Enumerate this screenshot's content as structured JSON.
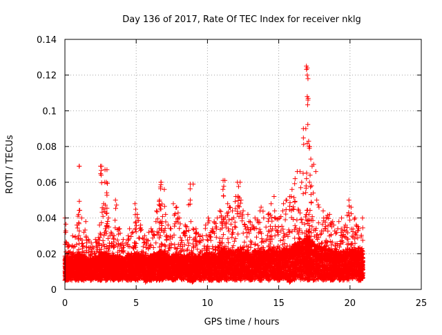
{
  "chart_data": {
    "type": "scatter",
    "title": "Day 136 of 2017, Rate Of TEC Index for receiver nklg",
    "xlabel": "GPS time / hours",
    "ylabel": "ROTI / TECUs",
    "xlim": [
      0,
      25
    ],
    "ylim": [
      0,
      0.14
    ],
    "xticks": [
      0,
      5,
      10,
      15,
      20,
      25
    ],
    "xtick_labels": [
      "0",
      "5",
      "10",
      "15",
      "20",
      "25"
    ],
    "yticks": [
      0,
      0.02,
      0.04,
      0.06,
      0.08,
      0.1,
      0.12,
      0.14
    ],
    "ytick_labels": [
      "0",
      "0.02",
      "0.04",
      "0.06",
      "0.08",
      "0.1",
      "0.12",
      "0.14"
    ],
    "grid": true,
    "marker": "plus",
    "series_color": "#ff0000",
    "data_range_hours": [
      0,
      20.9
    ],
    "series": [
      {
        "name": "ROTI",
        "description_x": "GPS time (hours)",
        "x": [
          0.0,
          0.1,
          0.2,
          0.3,
          0.5,
          0.7,
          0.9,
          1.0,
          1.1,
          1.3,
          1.5,
          1.7,
          1.9,
          2.1,
          2.3,
          2.5,
          2.6,
          2.8,
          2.9,
          3.0,
          3.2,
          3.4,
          3.5,
          3.7,
          3.9,
          4.1,
          4.3,
          4.5,
          4.7,
          4.9,
          5.0,
          5.2,
          5.4,
          5.6,
          5.8,
          6.0,
          6.2,
          6.4,
          6.6,
          6.7,
          6.8,
          7.0,
          7.2,
          7.4,
          7.6,
          7.8,
          8.0,
          8.2,
          8.4,
          8.6,
          8.8,
          9.0,
          9.2,
          9.4,
          9.6,
          9.8,
          10.0,
          10.2,
          10.4,
          10.6,
          10.8,
          11.0,
          11.1,
          11.3,
          11.5,
          11.7,
          11.9,
          12.1,
          12.3,
          12.5,
          12.7,
          12.9,
          13.1,
          13.3,
          13.5,
          13.7,
          13.9,
          14.1,
          14.3,
          14.5,
          14.7,
          14.9,
          15.1,
          15.3,
          15.5,
          15.7,
          15.9,
          16.1,
          16.3,
          16.5,
          16.7,
          16.9,
          17.0,
          17.1,
          17.2,
          17.4,
          17.6,
          17.8,
          18.0,
          18.2,
          18.4,
          18.6,
          18.8,
          19.0,
          19.2,
          19.4,
          19.6,
          19.8,
          20.0,
          20.2,
          20.4,
          20.6,
          20.8
        ],
        "y_min": [
          0.005,
          0.005,
          0.005,
          0.005,
          0.006,
          0.005,
          0.005,
          0.006,
          0.005,
          0.005,
          0.006,
          0.005,
          0.005,
          0.006,
          0.005,
          0.005,
          0.006,
          0.005,
          0.005,
          0.006,
          0.005,
          0.005,
          0.006,
          0.005,
          0.005,
          0.006,
          0.005,
          0.005,
          0.006,
          0.005,
          0.005,
          0.006,
          0.005,
          0.004,
          0.005,
          0.005,
          0.006,
          0.005,
          0.005,
          0.006,
          0.005,
          0.005,
          0.006,
          0.005,
          0.005,
          0.006,
          0.005,
          0.005,
          0.006,
          0.005,
          0.004,
          0.005,
          0.006,
          0.005,
          0.005,
          0.006,
          0.005,
          0.005,
          0.006,
          0.005,
          0.005,
          0.006,
          0.005,
          0.005,
          0.006,
          0.005,
          0.005,
          0.006,
          0.005,
          0.005,
          0.006,
          0.005,
          0.005,
          0.006,
          0.005,
          0.005,
          0.006,
          0.005,
          0.005,
          0.006,
          0.005,
          0.005,
          0.006,
          0.005,
          0.005,
          0.004,
          0.005,
          0.005,
          0.006,
          0.005,
          0.005,
          0.006,
          0.005,
          0.005,
          0.006,
          0.005,
          0.005,
          0.006,
          0.005,
          0.005,
          0.006,
          0.005,
          0.005,
          0.006,
          0.005,
          0.005,
          0.006,
          0.005,
          0.005,
          0.006,
          0.005,
          0.005,
          0.006
        ],
        "y_max": [
          0.04,
          0.026,
          0.025,
          0.024,
          0.03,
          0.036,
          0.042,
          0.069,
          0.04,
          0.038,
          0.028,
          0.026,
          0.024,
          0.028,
          0.036,
          0.069,
          0.048,
          0.067,
          0.06,
          0.04,
          0.032,
          0.03,
          0.05,
          0.034,
          0.028,
          0.026,
          0.03,
          0.034,
          0.032,
          0.048,
          0.042,
          0.036,
          0.03,
          0.028,
          0.032,
          0.034,
          0.038,
          0.044,
          0.05,
          0.06,
          0.056,
          0.042,
          0.036,
          0.034,
          0.048,
          0.046,
          0.04,
          0.032,
          0.036,
          0.059,
          0.038,
          0.034,
          0.032,
          0.03,
          0.03,
          0.036,
          0.04,
          0.034,
          0.038,
          0.04,
          0.044,
          0.056,
          0.061,
          0.048,
          0.046,
          0.044,
          0.052,
          0.06,
          0.05,
          0.044,
          0.042,
          0.038,
          0.036,
          0.04,
          0.044,
          0.046,
          0.04,
          0.042,
          0.048,
          0.052,
          0.044,
          0.04,
          0.044,
          0.048,
          0.05,
          0.052,
          0.056,
          0.062,
          0.066,
          0.06,
          0.09,
          0.125,
          0.107,
          0.08,
          0.069,
          0.054,
          0.05,
          0.046,
          0.044,
          0.04,
          0.042,
          0.038,
          0.036,
          0.034,
          0.038,
          0.04,
          0.036,
          0.05,
          0.046,
          0.04,
          0.036,
          0.034,
          0.04
        ],
        "y_typical": [
          0.014,
          0.013,
          0.013,
          0.013,
          0.014,
          0.014,
          0.015,
          0.015,
          0.014,
          0.014,
          0.013,
          0.013,
          0.013,
          0.014,
          0.014,
          0.015,
          0.015,
          0.015,
          0.015,
          0.014,
          0.014,
          0.013,
          0.014,
          0.014,
          0.013,
          0.013,
          0.014,
          0.014,
          0.014,
          0.015,
          0.015,
          0.014,
          0.014,
          0.013,
          0.014,
          0.014,
          0.015,
          0.015,
          0.016,
          0.016,
          0.016,
          0.015,
          0.014,
          0.014,
          0.015,
          0.015,
          0.014,
          0.014,
          0.014,
          0.015,
          0.014,
          0.014,
          0.014,
          0.014,
          0.014,
          0.015,
          0.015,
          0.015,
          0.015,
          0.015,
          0.016,
          0.016,
          0.017,
          0.016,
          0.016,
          0.016,
          0.016,
          0.017,
          0.016,
          0.016,
          0.016,
          0.015,
          0.015,
          0.016,
          0.016,
          0.016,
          0.016,
          0.016,
          0.017,
          0.017,
          0.016,
          0.016,
          0.016,
          0.017,
          0.017,
          0.017,
          0.018,
          0.019,
          0.02,
          0.02,
          0.021,
          0.022,
          0.022,
          0.021,
          0.02,
          0.019,
          0.018,
          0.018,
          0.017,
          0.017,
          0.017,
          0.016,
          0.016,
          0.016,
          0.016,
          0.016,
          0.016,
          0.017,
          0.017,
          0.016,
          0.016,
          0.016,
          0.016
        ]
      }
    ],
    "notable_points": [
      {
        "x": 1.0,
        "y": 0.069
      },
      {
        "x": 2.5,
        "y": 0.069
      },
      {
        "x": 2.95,
        "y": 0.067
      },
      {
        "x": 2.8,
        "y": 0.06
      },
      {
        "x": 6.75,
        "y": 0.06
      },
      {
        "x": 9.0,
        "y": 0.059
      },
      {
        "x": 11.1,
        "y": 0.061
      },
      {
        "x": 12.1,
        "y": 0.06
      },
      {
        "x": 16.3,
        "y": 0.066
      },
      {
        "x": 17.0,
        "y": 0.124
      },
      {
        "x": 17.0,
        "y": 0.12
      },
      {
        "x": 17.05,
        "y": 0.118
      },
      {
        "x": 17.0,
        "y": 0.108
      },
      {
        "x": 17.05,
        "y": 0.106
      },
      {
        "x": 16.9,
        "y": 0.09
      },
      {
        "x": 17.1,
        "y": 0.083
      },
      {
        "x": 17.15,
        "y": 0.079
      },
      {
        "x": 17.25,
        "y": 0.073
      },
      {
        "x": 17.45,
        "y": 0.07
      },
      {
        "x": 17.6,
        "y": 0.066
      },
      {
        "x": 17.2,
        "y": 0.064
      },
      {
        "x": 16.95,
        "y": 0.062
      },
      {
        "x": 17.3,
        "y": 0.058
      }
    ]
  }
}
